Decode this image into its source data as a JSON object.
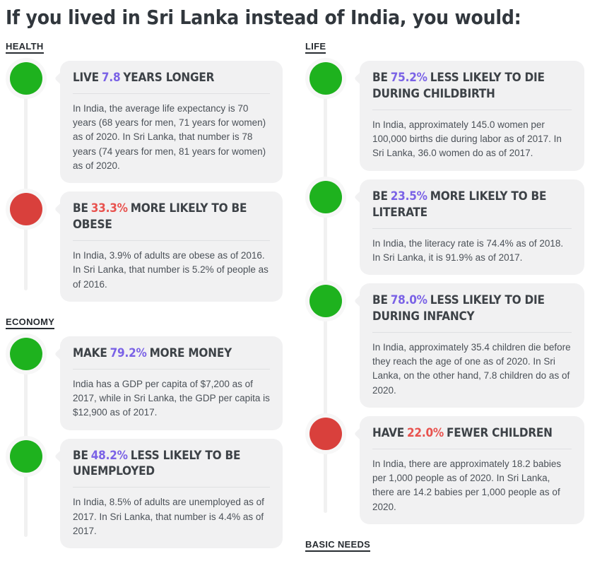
{
  "title": "If you lived in Sri Lanka instead of India, you would:",
  "colors": {
    "green": "#1eb21e",
    "red": "#d9403c",
    "purple": "#7a62e6",
    "accent_red": "#e8524e",
    "card_bg": "#f1f1f2",
    "ring": "#f7f7f7",
    "timeline": "#f1f1f1",
    "heading": "#3d4247",
    "body_text": "#4b5158",
    "title": "#31373d",
    "label": "#272c31"
  },
  "columns": [
    {
      "sections": [
        {
          "label": "HEALTH",
          "cards": [
            {
              "sentiment": "good",
              "headline_pre": "LIVE",
              "headline_value": "7.8",
              "headline_post": "YEARS LONGER",
              "body": "In India, the average life expectancy is 70 years (68 years for men, 71 years for women) as of 2020. In Sri Lanka, that number is 78 years (74 years for men, 81 years for women) as of 2020."
            },
            {
              "sentiment": "bad",
              "headline_pre": "BE",
              "headline_value": "33.3%",
              "headline_post": "MORE LIKELY TO BE OBESE",
              "body": "In India, 3.9% of adults are obese as of 2016. In Sri Lanka, that number is 5.2% of people as of 2016."
            }
          ]
        },
        {
          "label": "ECONOMY",
          "cards": [
            {
              "sentiment": "good",
              "headline_pre": "MAKE",
              "headline_value": "79.2%",
              "headline_post": "MORE MONEY",
              "body": "India has a GDP per capita of $7,200 as of 2017, while in Sri Lanka, the GDP per capita is $12,900 as of 2017."
            },
            {
              "sentiment": "good",
              "headline_pre": "BE",
              "headline_value": "48.2%",
              "headline_post": "LESS LIKELY TO BE UNEMPLOYED",
              "body": "In India, 8.5% of adults are unemployed as of 2017. In Sri Lanka, that number is 4.4% as of 2017."
            }
          ]
        }
      ]
    },
    {
      "sections": [
        {
          "label": "LIFE",
          "cards": [
            {
              "sentiment": "good",
              "headline_pre": "BE",
              "headline_value": "75.2%",
              "headline_post": "LESS LIKELY TO DIE DURING CHILDBIRTH",
              "body": "In India, approximately 145.0 women per 100,000 births die during labor as of 2017. In Sri Lanka, 36.0 women do as of 2017."
            },
            {
              "sentiment": "good",
              "headline_pre": "BE",
              "headline_value": "23.5%",
              "headline_post": "MORE LIKELY TO BE LITERATE",
              "body": "In India, the literacy rate is 74.4% as of 2018. In Sri Lanka, it is 91.9% as of 2017."
            },
            {
              "sentiment": "good",
              "headline_pre": "BE",
              "headline_value": "78.0%",
              "headline_post": "LESS LIKELY TO DIE DURING INFANCY",
              "body": "In India, approximately 35.4 children die before they reach the age of one as of 2020. In Sri Lanka, on the other hand, 7.8 children do as of 2020."
            },
            {
              "sentiment": "bad",
              "headline_pre": "HAVE",
              "headline_value": "22.0%",
              "headline_post": "FEWER CHILDREN",
              "body": "In India, there are approximately 18.2 babies per 1,000 people as of 2020. In Sri Lanka, there are 14.2 babies per 1,000 people as of 2020."
            }
          ]
        },
        {
          "label": "BASIC NEEDS",
          "cards": []
        }
      ]
    }
  ]
}
